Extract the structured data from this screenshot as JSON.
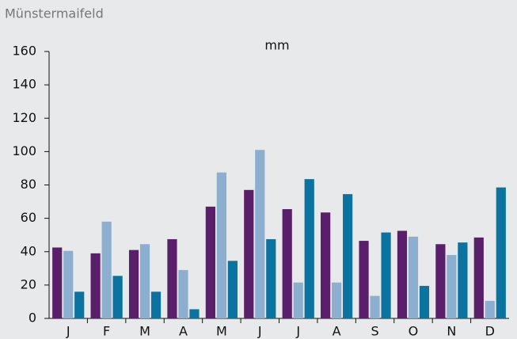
{
  "chart_data": {
    "type": "bar",
    "title": "Münstermaifeld",
    "subtitle": "mm",
    "categories": [
      "J",
      "F",
      "M",
      "A",
      "M",
      "J",
      "J",
      "A",
      "S",
      "O",
      "N",
      "D"
    ],
    "series": [
      {
        "color": "#5a1f6a",
        "values": [
          42.5,
          39,
          41,
          47.5,
          67,
          77,
          65.5,
          63.5,
          46.5,
          52.5,
          44.5,
          48.5
        ]
      },
      {
        "color": "#8cafd0",
        "values": [
          40.5,
          58,
          44.5,
          29,
          87.5,
          101,
          21.5,
          21.5,
          13.5,
          49,
          38,
          10.5
        ]
      },
      {
        "color": "#0a73a0",
        "values": [
          16,
          25.5,
          16,
          5.5,
          34.5,
          47.5,
          83.5,
          74.5,
          51.5,
          19.5,
          45.5,
          78.5
        ]
      }
    ],
    "ylim": [
      0,
      160
    ],
    "yticks": [
      0,
      20,
      40,
      60,
      80,
      100,
      120,
      140,
      160
    ],
    "grid": false
  }
}
